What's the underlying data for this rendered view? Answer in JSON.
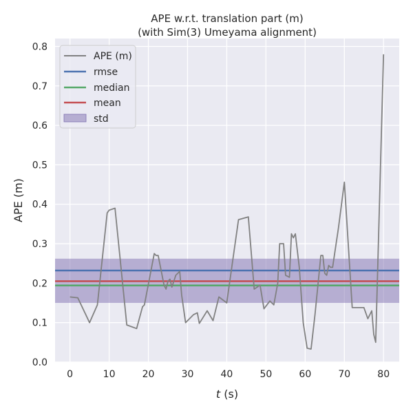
{
  "chart_data": {
    "type": "line",
    "title": "APE w.r.t. translation part (m)",
    "subtitle": "(with Sim(3) Umeyama alignment)",
    "xlabel_italic": "t",
    "xlabel_rest": " (s)",
    "ylabel": "APE (m)",
    "xlim": [
      -3.8,
      84
    ],
    "ylim": [
      0,
      0.82
    ],
    "xticks": [
      0,
      10,
      20,
      30,
      40,
      50,
      60,
      70,
      80
    ],
    "yticks": [
      0.0,
      0.1,
      0.2,
      0.3,
      0.4,
      0.5,
      0.6,
      0.7,
      0.8
    ],
    "ytick_labels": [
      "0.0",
      "0.1",
      "0.2",
      "0.3",
      "0.4",
      "0.5",
      "0.6",
      "0.7",
      "0.8"
    ],
    "grid": true,
    "legend_position": "top-left",
    "series": [
      {
        "name": "APE (m)",
        "color": "#808080",
        "x": [
          0,
          2,
          5,
          7,
          9.5,
          10,
          11.5,
          14.5,
          17,
          18.5,
          19,
          21.5,
          22,
          22.5,
          24,
          24.5,
          25,
          25.5,
          26,
          27,
          28,
          28.5,
          29.5,
          31.5,
          32.5,
          33,
          35,
          36.5,
          38,
          40,
          43,
          45.5,
          47,
          48.5,
          49.5,
          51,
          52,
          53,
          53.5,
          54.5,
          55,
          56,
          56.5,
          57,
          57.5,
          58.5,
          59.5,
          60.5,
          61.5,
          62.5,
          63.5,
          64,
          64.5,
          65,
          65.5,
          66,
          66.5,
          67,
          68.5,
          70,
          72,
          75,
          76,
          77,
          77.5,
          78,
          80
        ],
        "y": [
          0.165,
          0.163,
          0.1,
          0.145,
          0.378,
          0.385,
          0.39,
          0.094,
          0.085,
          0.14,
          0.145,
          0.275,
          0.27,
          0.27,
          0.195,
          0.185,
          0.205,
          0.21,
          0.19,
          0.22,
          0.23,
          0.17,
          0.1,
          0.12,
          0.125,
          0.098,
          0.13,
          0.105,
          0.165,
          0.15,
          0.361,
          0.368,
          0.185,
          0.195,
          0.135,
          0.155,
          0.145,
          0.2,
          0.3,
          0.3,
          0.22,
          0.215,
          0.325,
          0.315,
          0.325,
          0.24,
          0.1,
          0.035,
          0.033,
          0.12,
          0.22,
          0.27,
          0.27,
          0.225,
          0.22,
          0.245,
          0.24,
          0.24,
          0.34,
          0.456,
          0.138,
          0.138,
          0.11,
          0.13,
          0.07,
          0.05,
          0.78
        ]
      },
      {
        "name": "rmse",
        "color": "#4c72b0",
        "value": 0.232
      },
      {
        "name": "median",
        "color": "#55a868",
        "value": 0.194
      },
      {
        "name": "mean",
        "color": "#c44e52",
        "value": 0.205
      },
      {
        "name": "std",
        "color": "#8172b2",
        "range": [
          0.15,
          0.262
        ]
      }
    ]
  }
}
